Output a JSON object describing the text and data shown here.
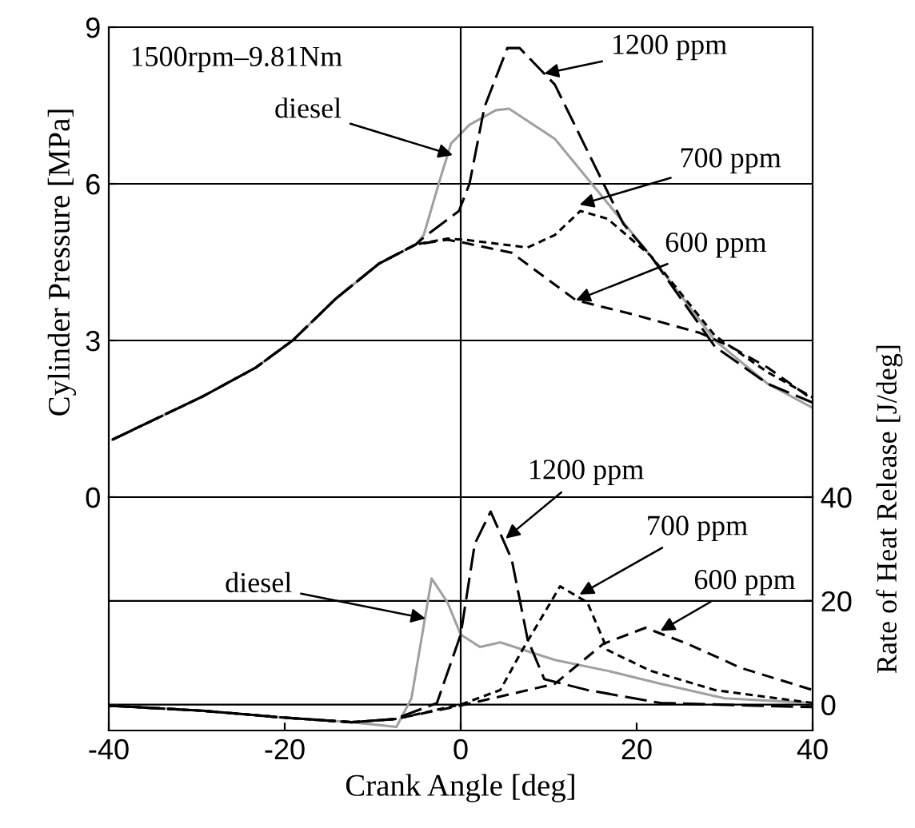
{
  "chart_data": [
    {
      "type": "line",
      "ylabel": "Cylinder Pressure [MPa]",
      "xlim": [
        -40,
        40
      ],
      "ylim": [
        0,
        9
      ],
      "yticks": [
        0,
        3,
        6,
        9
      ],
      "grid": "y",
      "tick_labels": "y",
      "ref_lines": [
        {
          "axis": "x",
          "value": 0
        }
      ],
      "annotations": [
        "1500rpm–9.81Nm",
        {
          "text": "diesel",
          "x": -0.9,
          "y": 6.55
        },
        {
          "text": "1200 ppm",
          "x": 9.5,
          "y": 8.11
        },
        {
          "text": "700 ppm",
          "x": 13.5,
          "y": 5.6
        },
        {
          "text": "600 ppm",
          "x": 13.1,
          "y": 3.77
        }
      ],
      "series": [
        {
          "color": "#a0a0a0",
          "line_style": "solid",
          "x": [
            -39.6,
            -29.3,
            -23.3,
            -19.1,
            -14.2,
            -9.3,
            -5.1,
            -4.2,
            -2.4,
            -1.1,
            1,
            4,
            5.5,
            10.7,
            14.9,
            21.6,
            28.9,
            34.9,
            40
          ],
          "values": [
            1.1,
            1.93,
            2.48,
            3.0,
            3.8,
            4.47,
            4.84,
            5.02,
            6.06,
            6.77,
            7.13,
            7.41,
            7.44,
            6.86,
            6.0,
            4.62,
            3.0,
            2.17,
            1.71
          ]
        },
        {
          "color": "#000000",
          "line_style": "dashed",
          "x": [
            -39.6,
            -29.3,
            -23.3,
            -19.1,
            -14.2,
            -9.3,
            -5.1,
            -4.0,
            -0.2,
            1,
            2.7,
            5.3,
            6.7,
            10.7,
            14.9,
            18.5,
            21.6,
            28.9,
            34.9,
            40
          ],
          "values": [
            1.1,
            1.93,
            2.48,
            3.0,
            3.8,
            4.47,
            4.84,
            5.0,
            5.48,
            6.0,
            7.47,
            8.6,
            8.6,
            7.9,
            6.46,
            5.23,
            4.62,
            2.88,
            2.17,
            1.81
          ]
        },
        {
          "color": "#000000",
          "line_style": "dotted",
          "x": [
            -39.6,
            -29.3,
            -23.3,
            -19.1,
            -14.2,
            -9.3,
            -5.1,
            -1.5,
            0.4,
            7.6,
            10.7,
            13.6,
            16.7,
            21.6,
            28.9,
            34.9,
            40
          ],
          "values": [
            1.1,
            1.93,
            2.48,
            3.0,
            3.8,
            4.47,
            4.84,
            4.95,
            4.93,
            4.78,
            5.02,
            5.48,
            5.33,
            4.62,
            3.09,
            2.39,
            1.91
          ]
        },
        {
          "color": "#000000",
          "line_style": "dashed",
          "x": [
            -39.6,
            -29.3,
            -23.3,
            -19.1,
            -14.2,
            -9.3,
            -5.1,
            -1.5,
            0.4,
            5.8,
            13.1,
            19.8,
            27.1,
            30.7,
            34.9,
            40
          ],
          "values": [
            1.1,
            1.93,
            2.48,
            3.0,
            3.8,
            4.47,
            4.84,
            4.93,
            4.87,
            4.68,
            3.77,
            3.49,
            3.15,
            2.88,
            2.48,
            1.87
          ]
        }
      ]
    },
    {
      "type": "line",
      "xlabel": "Crank Angle [deg]",
      "ylabel": "Rate of Heat Release [J/deg]",
      "xlim": [
        -40,
        40
      ],
      "xticks": [
        -40,
        -20,
        0,
        20,
        40
      ],
      "ylim": [
        -5,
        40
      ],
      "yticks": [
        0,
        20,
        40
      ],
      "grid": "y",
      "ref_lines": [
        {
          "axis": "x",
          "value": 0
        }
      ],
      "annotations": [
        {
          "text": "diesel",
          "x": -4,
          "y": 16.6
        },
        {
          "text": "1200 ppm",
          "x": 5.1,
          "y": 32
        },
        {
          "text": "700 ppm",
          "x": 13.5,
          "y": 21.2
        },
        {
          "text": "600 ppm",
          "x": 22.7,
          "y": 14.2
        }
      ],
      "series": [
        {
          "color": "#a0a0a0",
          "line_style": "solid",
          "x": [
            -40,
            -29.3,
            -20.2,
            -12.4,
            -7.3,
            -5.6,
            -3.3,
            -1.5,
            0,
            2.2,
            4.5,
            10.7,
            16.7,
            22.7,
            30,
            40
          ],
          "values": [
            -0.2,
            -1.2,
            -2.5,
            -3.4,
            -4.3,
            1.2,
            24.3,
            19.7,
            13.5,
            11.1,
            12,
            8.6,
            6.5,
            4.0,
            1.2,
            0.3
          ]
        },
        {
          "color": "#000000",
          "line_style": "dashed",
          "x": [
            -40,
            -29.3,
            -20.2,
            -12.4,
            -7.5,
            -2.7,
            0,
            1.6,
            3.4,
            5.8,
            7.6,
            9.5,
            14.4,
            22.7,
            40
          ],
          "values": [
            -0.2,
            -1.2,
            -2.5,
            -3.4,
            -2.8,
            0.3,
            13.5,
            31,
            37.2,
            28,
            12.6,
            4.9,
            2.8,
            0.3,
            -0.5
          ]
        },
        {
          "color": "#000000",
          "line_style": "dotted",
          "x": [
            -40,
            -29.3,
            -20.2,
            -12.4,
            -7.5,
            0,
            4.5,
            7,
            11.3,
            14.4,
            16.7,
            21.6,
            28.9,
            40
          ],
          "values": [
            -0.2,
            -1.2,
            -2.5,
            -3.4,
            -2.8,
            0,
            2.8,
            10.5,
            22.8,
            19.7,
            10.5,
            6.5,
            2.8,
            0.3
          ]
        },
        {
          "color": "#000000",
          "line_style": "dashed",
          "x": [
            -40,
            -29.3,
            -20.2,
            -12.4,
            -7.5,
            0,
            10.7,
            16.2,
            21,
            25.8,
            31.8,
            40
          ],
          "values": [
            -0.2,
            -1.2,
            -2.5,
            -3.4,
            -2.8,
            -0.2,
            4.0,
            11.7,
            14.8,
            11.7,
            7.1,
            2.8
          ]
        }
      ]
    }
  ]
}
